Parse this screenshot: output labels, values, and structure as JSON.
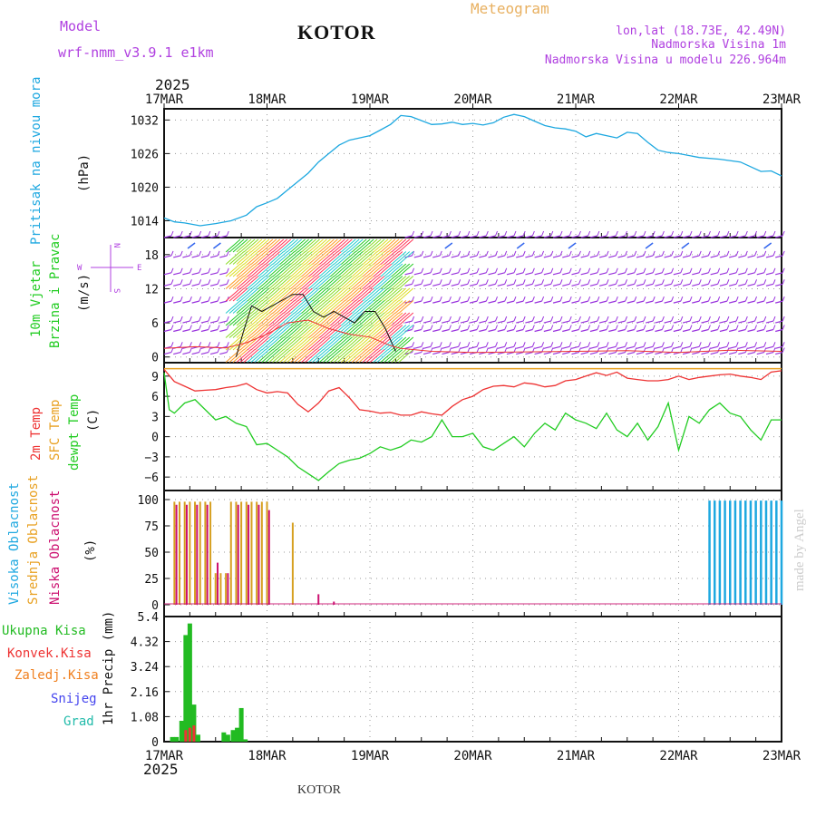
{
  "header": {
    "model_label": "Model",
    "model_name": "wrf-nmm_v3.9.1 e1km",
    "station": "KOTOR",
    "title": "Meteogram",
    "lonlat": "lon,lat (18.73E, 42.49N)",
    "elevation": "Nadmorska Visina 1m",
    "model_elevation": "Nadmorska Visina u modelu 226.964m",
    "year": "2025",
    "footer_station": "KOTOR",
    "watermark": "made by Angel"
  },
  "colors": {
    "pressure": "#1ea8e0",
    "wind": "#22cc22",
    "temp2m": "#ee3333",
    "sfc": "#e8a020",
    "dewpt": "#22cc22",
    "high_cloud": "#1ea8e0",
    "mid_cloud": "#d6a020",
    "low_cloud": "#cc1070",
    "total_precip": "#22bb22",
    "conv_precip": "#ee3333",
    "frz_precip": "#f08020",
    "snow": "#4444ee",
    "hail": "#22bbaa",
    "purple_text": "#b040e0",
    "title_orange": "#e8b060",
    "gust": "#111111"
  },
  "chart_data": [
    {
      "type": "line",
      "panel": "pressure",
      "ylabel_main": "Pritisak na nivou mora",
      "ylabel_unit": "(hPa)",
      "xlabels": [
        "17MAR",
        "18MAR",
        "19MAR",
        "20MAR",
        "21MAR",
        "22MAR",
        "23MAR"
      ],
      "ylim": [
        1011,
        1034
      ],
      "yticks": [
        1014,
        1020,
        1026,
        1032
      ],
      "x_days": [
        0,
        0.1,
        0.2,
        0.35,
        0.5,
        0.65,
        0.8,
        0.9,
        1.0,
        1.1,
        1.2,
        1.3,
        1.4,
        1.5,
        1.6,
        1.7,
        1.8,
        1.9,
        2.0,
        2.1,
        2.2,
        2.3,
        2.4,
        2.5,
        2.6,
        2.7,
        2.8,
        2.9,
        3.0,
        3.1,
        3.2,
        3.3,
        3.4,
        3.5,
        3.6,
        3.7,
        3.8,
        3.9,
        4.0,
        4.1,
        4.2,
        4.4,
        4.5,
        4.6,
        4.7,
        4.8,
        4.9,
        5.0,
        5.2,
        5.4,
        5.6,
        5.8,
        5.9,
        6.0
      ],
      "values": [
        1014.5,
        1013.8,
        1013.6,
        1013.1,
        1013.5,
        1014.0,
        1015.0,
        1016.5,
        1017.2,
        1018.0,
        1019.5,
        1021.0,
        1022.5,
        1024.5,
        1026.0,
        1027.5,
        1028.4,
        1028.8,
        1029.2,
        1030.2,
        1031.2,
        1032.8,
        1032.6,
        1031.9,
        1031.2,
        1031.3,
        1031.6,
        1031.2,
        1031.4,
        1031.1,
        1031.5,
        1032.5,
        1033.0,
        1032.6,
        1031.8,
        1031.0,
        1030.6,
        1030.4,
        1030.0,
        1029.0,
        1029.6,
        1028.8,
        1029.8,
        1029.6,
        1028.0,
        1026.6,
        1026.2,
        1026.0,
        1025.3,
        1025.0,
        1024.5,
        1022.8,
        1022.9,
        1022.0
      ]
    },
    {
      "type": "line",
      "panel": "wind",
      "ylabel_main": "10m Vjetar",
      "ylabel_sub": "Brzina i Pravac",
      "ylabel_unit": "(m/s)",
      "compass": {
        "n": "N",
        "s": "S",
        "w": "W",
        "e": "E"
      },
      "ylim": [
        -1,
        21
      ],
      "yticks": [
        0,
        6,
        12,
        18
      ],
      "gust_line": {
        "x_days": [
          0.7,
          0.78,
          0.85,
          0.95,
          1.05,
          1.15,
          1.25,
          1.35,
          1.45,
          1.55,
          1.65,
          1.75,
          1.85,
          1.95,
          2.05,
          2.15,
          2.25
        ],
        "values": [
          0,
          5,
          9,
          8,
          9,
          10,
          11,
          11,
          8,
          7,
          8,
          7,
          6,
          8,
          8,
          5,
          1
        ]
      },
      "speed_line": {
        "x_days": [
          0,
          0.3,
          0.6,
          0.8,
          1.0,
          1.2,
          1.4,
          1.6,
          1.8,
          2.0,
          2.2,
          2.3,
          2.6,
          3.0,
          3.5,
          4.0,
          4.5,
          5.0,
          5.5,
          6.0
        ],
        "values": [
          1.5,
          1.8,
          1.6,
          2.5,
          4,
          6,
          6.5,
          5,
          4,
          3.5,
          2,
          1.5,
          1,
          0.8,
          0.9,
          1.0,
          1.1,
          0.8,
          1.2,
          1.0
        ]
      },
      "barb_rows": [
        0.5,
        1.5,
        4.5,
        6,
        9.5,
        12.5,
        14.5,
        17.5,
        21
      ]
    },
    {
      "type": "line",
      "panel": "temperature",
      "ylabels": [
        "2m Temp",
        "SFC Temp",
        "dewpt Temp"
      ],
      "ylabel_unit": "(C)",
      "ylim": [
        -8,
        11
      ],
      "yticks": [
        -6,
        -3,
        0,
        3,
        6,
        9
      ],
      "sfc_value": 10.1,
      "series": [
        {
          "name": "2m Temp",
          "x_days": [
            0,
            0.1,
            0.2,
            0.3,
            0.4,
            0.5,
            0.6,
            0.7,
            0.8,
            0.9,
            1.0,
            1.1,
            1.2,
            1.3,
            1.4,
            1.5,
            1.6,
            1.7,
            1.8,
            1.9,
            2.0,
            2.1,
            2.2,
            2.3,
            2.4,
            2.5,
            2.6,
            2.7,
            2.8,
            2.9,
            3.0,
            3.1,
            3.2,
            3.3,
            3.4,
            3.5,
            3.6,
            3.7,
            3.8,
            3.9,
            4.0,
            4.1,
            4.2,
            4.3,
            4.4,
            4.5,
            4.6,
            4.7,
            4.8,
            4.9,
            5.0,
            5.1,
            5.2,
            5.3,
            5.4,
            5.5,
            5.6,
            5.7,
            5.8,
            5.9,
            6.0
          ],
          "values": [
            10,
            8.2,
            7.5,
            6.8,
            6.9,
            7.0,
            7.3,
            7.5,
            7.9,
            7.0,
            6.5,
            6.7,
            6.5,
            4.8,
            3.7,
            5.0,
            6.8,
            7.3,
            5.8,
            4.0,
            3.8,
            3.5,
            3.6,
            3.2,
            3.2,
            3.7,
            3.4,
            3.2,
            4.5,
            5.5,
            6.0,
            7.0,
            7.5,
            7.6,
            7.4,
            8.0,
            7.8,
            7.4,
            7.6,
            8.3,
            8.5,
            9.0,
            9.5,
            9.1,
            9.6,
            8.7,
            8.5,
            8.3,
            8.3,
            8.5,
            9.0,
            8.5,
            8.8,
            9.0,
            9.2,
            9.3,
            9.0,
            8.8,
            8.5,
            9.6,
            9.8
          ]
        },
        {
          "name": "dewpt Temp",
          "x_days": [
            0,
            0.05,
            0.1,
            0.2,
            0.3,
            0.4,
            0.5,
            0.6,
            0.7,
            0.8,
            0.9,
            1.0,
            1.1,
            1.2,
            1.3,
            1.4,
            1.5,
            1.6,
            1.7,
            1.8,
            1.9,
            2.0,
            2.1,
            2.2,
            2.3,
            2.4,
            2.5,
            2.6,
            2.7,
            2.8,
            2.9,
            3.0,
            3.1,
            3.2,
            3.3,
            3.4,
            3.5,
            3.6,
            3.7,
            3.8,
            3.9,
            4.0,
            4.1,
            4.2,
            4.3,
            4.4,
            4.5,
            4.6,
            4.7,
            4.8,
            4.9,
            5.0,
            5.1,
            5.2,
            5.3,
            5.4,
            5.5,
            5.6,
            5.7,
            5.8,
            5.9,
            6.0
          ],
          "values": [
            9.5,
            4.0,
            3.5,
            5.0,
            5.5,
            4.0,
            2.5,
            3.0,
            2.0,
            1.5,
            -1.2,
            -1.0,
            -2.0,
            -3.0,
            -4.5,
            -5.5,
            -6.5,
            -5.2,
            -4.0,
            -3.5,
            -3.2,
            -2.5,
            -1.5,
            -2.0,
            -1.5,
            -0.5,
            -0.8,
            0.0,
            2.5,
            0.0,
            0.0,
            0.5,
            -1.5,
            -2.0,
            -1.0,
            0.0,
            -1.5,
            0.5,
            2.0,
            1.0,
            3.5,
            2.5,
            2.0,
            1.2,
            3.5,
            1.0,
            0.0,
            2.0,
            -0.5,
            1.5,
            5.0,
            -2.0,
            3.0,
            2.0,
            4.0,
            5.0,
            3.5,
            3.0,
            1.0,
            -0.5,
            2.5,
            2.5
          ]
        }
      ]
    },
    {
      "type": "bar",
      "panel": "cloud",
      "ylabels": [
        "Visoka Oblacnost",
        "Srednja Oblacnost",
        "Niska Oblacnost"
      ],
      "ylabel_unit": "(%)",
      "ylim": [
        0,
        100
      ],
      "yticks": [
        0,
        25,
        50,
        75,
        100
      ],
      "series": [
        {
          "name": "Srednja Oblacnost",
          "x_days": [
            0.1,
            0.15,
            0.2,
            0.25,
            0.3,
            0.35,
            0.4,
            0.45,
            0.5,
            0.55,
            0.6,
            0.65,
            0.7,
            0.75,
            0.8,
            0.85,
            0.9,
            0.95,
            1.0,
            1.25
          ],
          "values": [
            98,
            98,
            98,
            98,
            98,
            98,
            98,
            98,
            30,
            30,
            30,
            98,
            98,
            98,
            98,
            98,
            98,
            98,
            98,
            78
          ]
        },
        {
          "name": "Niska Oblacnost",
          "x_days": [
            0.12,
            0.22,
            0.32,
            0.42,
            0.52,
            0.62,
            0.72,
            0.82,
            0.92,
            1.02,
            1.5,
            1.65
          ],
          "values": [
            95,
            95,
            95,
            95,
            40,
            30,
            95,
            95,
            95,
            90,
            10,
            3
          ]
        },
        {
          "name": "Visoka Oblacnost",
          "x_days": [
            5.3,
            5.35,
            5.4,
            5.45,
            5.5,
            5.55,
            5.6,
            5.65,
            5.7,
            5.75,
            5.8,
            5.85,
            5.9,
            5.95,
            6.0
          ],
          "values": [
            99,
            99,
            99,
            99,
            99,
            99,
            99,
            99,
            99,
            99,
            99,
            99,
            99,
            99,
            99
          ]
        }
      ]
    },
    {
      "type": "bar",
      "panel": "precip",
      "ylabels": [
        "Ukupna Kisa",
        "Konvek.Kisa",
        "Zaledj.Kisa",
        "Snijeg",
        "Grad"
      ],
      "ylabel_unit": "1hr Precip (mm)",
      "ylim": [
        0,
        5.4
      ],
      "yticks": [
        0,
        1.08,
        2.16,
        3.24,
        4.32,
        5.4
      ],
      "series": [
        {
          "name": "Ukupna Kisa",
          "x_days": [
            0.08,
            0.12,
            0.17,
            0.21,
            0.25,
            0.29,
            0.33,
            0.58,
            0.62,
            0.67,
            0.71,
            0.75,
            0.79
          ],
          "values": [
            0.2,
            0.2,
            0.9,
            4.6,
            5.1,
            1.6,
            0.3,
            0.4,
            0.3,
            0.5,
            0.6,
            1.45,
            0.1
          ]
        },
        {
          "name": "Konvek.Kisa",
          "x_days": [
            0.21,
            0.25,
            0.29
          ],
          "values": [
            0.5,
            0.6,
            0.7
          ]
        }
      ],
      "xlabels": [
        "17MAR",
        "18MAR",
        "19MAR",
        "20MAR",
        "21MAR",
        "22MAR",
        "23MAR"
      ]
    }
  ]
}
